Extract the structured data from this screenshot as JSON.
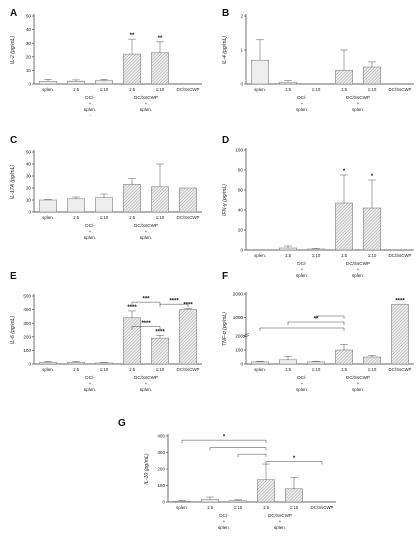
{
  "chart_data": [
    {
      "panel": "A",
      "type": "bar",
      "ylabel": "IL-2 (pg/mL)",
      "ylim": [
        0,
        50
      ],
      "yticks": [
        "0",
        "10",
        "20",
        "30",
        "40",
        "50"
      ],
      "categories": [
        "splen.",
        "1:5",
        "1:10",
        "1:5",
        "1:10",
        "DC/SsCWP"
      ],
      "values": [
        2,
        2,
        2.5,
        22,
        23,
        0
      ],
      "errors": [
        1.5,
        1,
        1,
        11,
        8,
        0
      ],
      "annotations": [
        "",
        "",
        "",
        "**",
        "**",
        ""
      ],
      "groups": [
        {
          "label": "DC/-",
          "sub": "+",
          "sub2": "splen.",
          "extra": "-",
          "from": 1,
          "to": 2
        },
        {
          "label": "DC/SsCWP",
          "sub": "+",
          "sub2": "splen.",
          "from": 3,
          "to": 4
        }
      ],
      "brackets": []
    },
    {
      "panel": "B",
      "type": "bar",
      "ylabel": "IL-4 (pg/mL)",
      "ylim": [
        0,
        2
      ],
      "yticks": [
        "0",
        "1",
        "2"
      ],
      "categories": [
        "splen.",
        "1:5",
        "1:10",
        "1:5",
        "1:10",
        "DC/SsCWP"
      ],
      "values": [
        0.7,
        0.05,
        0,
        0.4,
        0.5,
        0
      ],
      "errors": [
        0.6,
        0.05,
        0,
        0.6,
        0.15,
        0
      ],
      "annotations": [
        "",
        "",
        "",
        "",
        "",
        ""
      ],
      "groups": [
        {
          "label": "DC/-",
          "sub": "+",
          "sub2": "splen.",
          "from": 1,
          "to": 2
        },
        {
          "label": "DC/SsCWP",
          "sub": "+",
          "sub2": "splen.",
          "from": 3,
          "to": 4
        }
      ],
      "brackets": []
    },
    {
      "panel": "C",
      "type": "bar",
      "ylabel": "IL-17A (pg/mL)",
      "ylim": [
        0,
        50
      ],
      "yticks": [
        "0",
        "10",
        "20",
        "30",
        "40",
        "50"
      ],
      "categories": [
        "splen.",
        "1:5",
        "1:10",
        "1:5",
        "1:10",
        "DC/SsCWP"
      ],
      "values": [
        10,
        11,
        12,
        23,
        21,
        20
      ],
      "errors": [
        0.5,
        1.5,
        3,
        5,
        19,
        0
      ],
      "annotations": [
        "",
        "",
        "",
        "",
        "",
        ""
      ],
      "groups": [
        {
          "label": "DC/-",
          "sub": "+",
          "sub2": "splen.",
          "from": 1,
          "to": 2
        },
        {
          "label": "DC/SsCWP",
          "sub": "+",
          "sub2": "splen.",
          "from": 3,
          "to": 4
        }
      ],
      "brackets": []
    },
    {
      "panel": "D",
      "type": "bar",
      "ylabel": "IFN-γ (pg/mL)",
      "ylim": [
        0,
        100
      ],
      "yticks": [
        "0",
        "20",
        "40",
        "60",
        "80",
        "100"
      ],
      "categories": [
        "splen.",
        "1:5",
        "1:10",
        "1:5",
        "1:10",
        "DC/SsCWP"
      ],
      "values": [
        0,
        2,
        1,
        47,
        42,
        0
      ],
      "errors": [
        0,
        2,
        0.5,
        28,
        28,
        0
      ],
      "annotations": [
        "",
        "",
        "",
        "*",
        "*",
        ""
      ],
      "groups": [
        {
          "label": "DC/-",
          "sub": "+",
          "sub2": "splen.",
          "from": 1,
          "to": 2
        },
        {
          "label": "DC/SsCWP",
          "sub": "+",
          "sub2": "splen.",
          "from": 3,
          "to": 4
        }
      ],
      "brackets": []
    },
    {
      "panel": "E",
      "type": "bar",
      "ylabel": "IL-6 (pg/mL)",
      "ylim": [
        0,
        500
      ],
      "yticks": [
        "0",
        "100",
        "200",
        "300",
        "400",
        "500"
      ],
      "categories": [
        "splen.",
        "1:5",
        "1:10",
        "1:5",
        "1:10",
        "DC/SsCWP"
      ],
      "values": [
        12,
        12,
        8,
        340,
        190,
        400
      ],
      "errors": [
        8,
        8,
        3,
        50,
        20,
        8
      ],
      "annotations": [
        "",
        "",
        "",
        "****",
        "****",
        "****"
      ],
      "groups": [
        {
          "label": "DC/-",
          "sub": "+",
          "sub2": "splen.",
          "from": 1,
          "to": 2
        },
        {
          "label": "DC/SsCWP",
          "sub": "+",
          "sub2": "splen.",
          "from": 3,
          "to": 4
        }
      ],
      "brackets": [
        {
          "from": 3,
          "to": 4,
          "y": 455,
          "label": "***"
        },
        {
          "from": 4,
          "to": 5,
          "y": 440,
          "label": "****"
        },
        {
          "from": 3,
          "to": 4,
          "y": 275,
          "label": "****"
        }
      ]
    },
    {
      "panel": "F",
      "type": "bar",
      "ylabel": "TNF-α (pg/mL)",
      "scale": "broken",
      "yticks": [
        "0",
        "100",
        "200",
        "1000",
        "2000"
      ],
      "categories": [
        "splen.",
        "1:5",
        "1:10",
        "1:5",
        "1:10",
        "DC/SsCWP"
      ],
      "values": [
        15,
        30,
        15,
        100,
        50,
        1550
      ],
      "errors": [
        5,
        25,
        5,
        40,
        10,
        0
      ],
      "annotations": [
        "",
        "",
        "",
        "",
        "",
        "****"
      ],
      "groups": [
        {
          "label": "DC/-",
          "sub": "+",
          "sub2": "splen.",
          "from": 1,
          "to": 2
        },
        {
          "label": "DC/SsCWP",
          "sub": "+",
          "sub2": "splen.",
          "from": 3,
          "to": 4
        }
      ],
      "brackets": [
        {
          "from": 0,
          "to": 3,
          "level": 2,
          "label": ""
        },
        {
          "from": 1,
          "to": 3,
          "level": 1,
          "label": "**"
        },
        {
          "from": 2,
          "to": 3,
          "level": 0,
          "label": ""
        }
      ]
    },
    {
      "panel": "G",
      "type": "bar",
      "ylabel": "IL-10 (pg/mL)",
      "ylim": [
        0,
        400
      ],
      "yticks": [
        "0",
        "100",
        "200",
        "300",
        "400"
      ],
      "categories": [
        "splen.",
        "1:5",
        "1:10",
        "1:5",
        "1:10",
        "DC/SsCWP"
      ],
      "values": [
        5,
        15,
        8,
        135,
        80,
        0
      ],
      "errors": [
        3,
        15,
        5,
        95,
        70,
        0
      ],
      "annotations": [
        "",
        "",
        "",
        "",
        "",
        ""
      ],
      "groups": [
        {
          "label": "DC/-",
          "sub": "+",
          "sub2": "splen.",
          "from": 1,
          "to": 2
        },
        {
          "label": "DC/SsCWP",
          "sub": "+",
          "sub2": "splen.",
          "from": 3,
          "to": 4
        }
      ],
      "brackets": [
        {
          "from": 0,
          "to": 3,
          "y": 375,
          "label": "*"
        },
        {
          "from": 1,
          "to": 3,
          "y": 330,
          "label": ""
        },
        {
          "from": 2,
          "to": 3,
          "y": 290,
          "label": ""
        },
        {
          "from": 3,
          "to": 5,
          "y": 245,
          "label": "*"
        }
      ]
    }
  ],
  "colors": {
    "bar_fill": "#ededed",
    "bar_hatch": "#8a8a8a",
    "axis": "#333333",
    "text": "#222222"
  }
}
